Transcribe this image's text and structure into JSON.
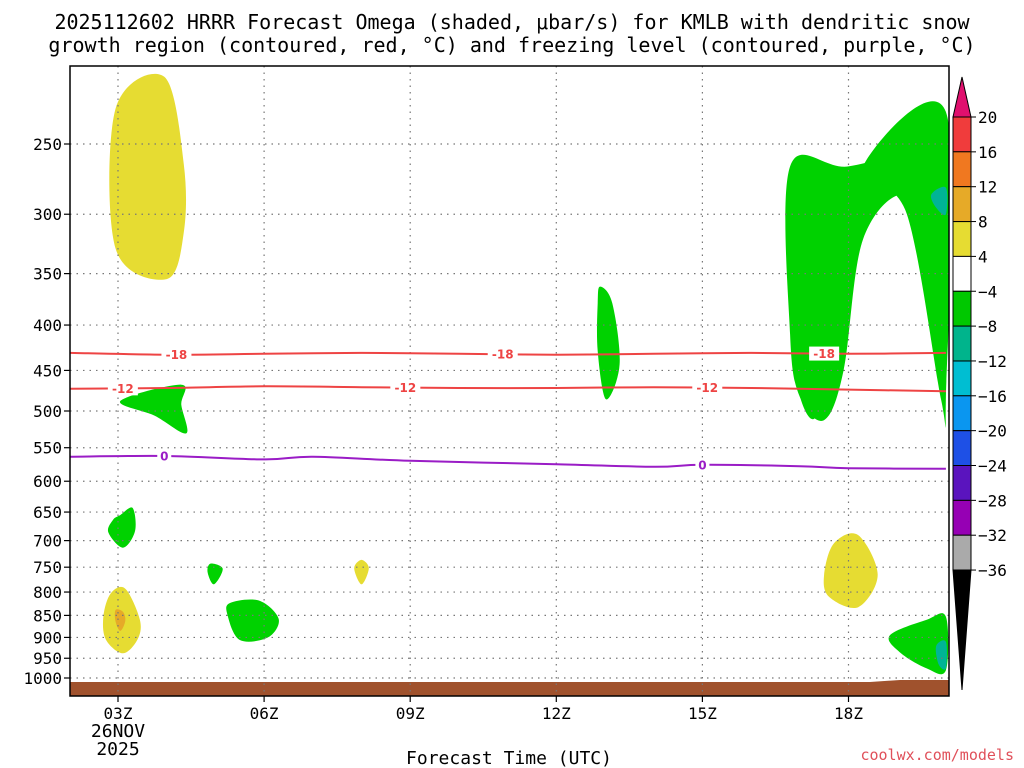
{
  "chart_data": {
    "type": "contour",
    "title_line1": "2025112602 HRRR Forecast Omega (shaded, μbar/s) for KMLB with dendritic snow",
    "title_line2": "growth region (contoured, red, °C) and freezing level (contoured, purple, °C)",
    "xlabel": "Forecast Time (UTC)",
    "x_ticks": [
      {
        "hour": 3,
        "label": "03Z"
      },
      {
        "hour": 6,
        "label": "06Z"
      },
      {
        "hour": 9,
        "label": "09Z"
      },
      {
        "hour": 12,
        "label": "12Z"
      },
      {
        "hour": 15,
        "label": "15Z"
      },
      {
        "hour": 18,
        "label": "18Z"
      }
    ],
    "date_label": "26NOV",
    "year_label": "2025",
    "x_range_hours": [
      2,
      20
    ],
    "y_range_hpa": [
      200,
      1025
    ],
    "y_scale": "log",
    "y_ticks": [
      250,
      300,
      350,
      400,
      450,
      500,
      550,
      600,
      650,
      700,
      750,
      800,
      850,
      900,
      950,
      1000
    ],
    "grid": true,
    "colorbar": {
      "labels": [
        "20",
        "16",
        "12",
        "8",
        "4",
        "−4",
        "−8",
        "−12",
        "−16",
        "−20",
        "−24",
        "−28",
        "−32",
        "−36"
      ],
      "colors": [
        "#e0106e",
        "#f03c3c",
        "#f07820",
        "#e6aa28",
        "#e6dc32",
        "#ffffff",
        "#00c800",
        "#00b48c",
        "#00bed2",
        "#0a96f0",
        "#1e50e6",
        "#5a14be",
        "#9600b4",
        "#aaaaaa",
        "#000000"
      ]
    },
    "omega_colors": {
      "green": "#00d200",
      "teal": "#00b496",
      "yellow": "#e6dc32",
      "orange": "#e6aa28"
    },
    "terrain_color": "#a0522d",
    "dgz_contours": [
      {
        "label": "-18",
        "color": "#ee4444",
        "points": [
          [
            2,
            430
          ],
          [
            4,
            432
          ],
          [
            6,
            431
          ],
          [
            8,
            430
          ],
          [
            10,
            431
          ],
          [
            12,
            432
          ],
          [
            14,
            431
          ],
          [
            16,
            430
          ],
          [
            18,
            431
          ],
          [
            20,
            430
          ]
        ],
        "label_hours": [
          4.2,
          10.9,
          17.5
        ]
      },
      {
        "label": "-12",
        "color": "#ee4444",
        "points": [
          [
            2,
            472
          ],
          [
            4,
            471
          ],
          [
            6,
            469
          ],
          [
            8,
            470
          ],
          [
            10,
            471
          ],
          [
            12,
            471
          ],
          [
            14,
            470
          ],
          [
            16,
            471
          ],
          [
            18,
            473
          ],
          [
            20,
            475
          ]
        ],
        "label_hours": [
          3.1,
          8.9,
          15.1
        ]
      }
    ],
    "freezing_contour": {
      "label": "0",
      "color": "#9a1cc6",
      "points": [
        [
          2,
          563
        ],
        [
          4,
          562
        ],
        [
          6,
          567
        ],
        [
          7,
          563
        ],
        [
          9,
          569
        ],
        [
          12,
          574
        ],
        [
          14,
          578
        ],
        [
          15,
          575
        ],
        [
          17,
          577
        ],
        [
          18,
          580
        ],
        [
          20,
          581
        ]
      ],
      "label_hours": [
        3.95,
        15
      ]
    },
    "omega_regions": [
      {
        "color": "yellow",
        "points": [
          [
            2.95,
            228
          ],
          [
            3.95,
            210
          ],
          [
            4.35,
            263
          ],
          [
            4.35,
            315
          ],
          [
            4.0,
            355
          ],
          [
            2.95,
            328
          ]
        ]
      },
      {
        "color": "green",
        "points": [
          [
            3.05,
            655
          ],
          [
            3.3,
            643
          ],
          [
            3.35,
            683
          ],
          [
            3.1,
            713
          ],
          [
            2.8,
            685
          ],
          [
            2.9,
            663
          ]
        ]
      },
      {
        "color": "yellow",
        "points": [
          [
            2.85,
            803
          ],
          [
            3.15,
            793
          ],
          [
            3.45,
            860
          ],
          [
            3.4,
            905
          ],
          [
            3.1,
            938
          ],
          [
            2.75,
            905
          ],
          [
            2.7,
            852
          ]
        ]
      },
      {
        "color": "orange",
        "points": [
          [
            2.95,
            838
          ],
          [
            3.1,
            842
          ],
          [
            3.15,
            862
          ],
          [
            3.05,
            885
          ],
          [
            2.95,
            864
          ]
        ]
      },
      {
        "color": "green",
        "points": [
          [
            3.05,
            487
          ],
          [
            4.3,
            467
          ],
          [
            4.3,
            492
          ],
          [
            4.4,
            530
          ],
          [
            3.75,
            506
          ]
        ]
      },
      {
        "color": "green",
        "points": [
          [
            4.9,
            743
          ],
          [
            5.15,
            753
          ],
          [
            4.97,
            784
          ],
          [
            4.84,
            760
          ]
        ]
      },
      {
        "color": "green",
        "points": [
          [
            5.3,
            823
          ],
          [
            5.9,
            818
          ],
          [
            6.3,
            858
          ],
          [
            6.08,
            900
          ],
          [
            5.5,
            906
          ],
          [
            5.25,
            850
          ]
        ]
      },
      {
        "color": "yellow",
        "points": [
          [
            8.0,
            736
          ],
          [
            8.15,
            752
          ],
          [
            8.0,
            784
          ],
          [
            7.85,
            752
          ]
        ]
      },
      {
        "color": "green",
        "points": [
          [
            12.9,
            362
          ],
          [
            13.15,
            378
          ],
          [
            13.3,
            443
          ],
          [
            13.02,
            485
          ],
          [
            12.85,
            428
          ],
          [
            12.85,
            378
          ]
        ]
      },
      {
        "color": "green",
        "points": [
          [
            16.8,
            265
          ],
          [
            18.0,
            265
          ],
          [
            19.8,
            250
          ],
          [
            20.0,
            250
          ],
          [
            20.0,
            335
          ],
          [
            19.2,
            285
          ],
          [
            18.3,
            320
          ],
          [
            17.9,
            450
          ],
          [
            17.5,
            512
          ],
          [
            17.0,
            482
          ],
          [
            16.8,
            410
          ]
        ]
      },
      {
        "color": "green",
        "points": [
          [
            18.3,
            265
          ],
          [
            20.0,
            230
          ],
          [
            20.0,
            482
          ],
          [
            19.9,
            485
          ],
          [
            19.2,
            300
          ]
        ]
      },
      {
        "color": "green",
        "points": [
          [
            17.0,
            430
          ],
          [
            17.5,
            420
          ],
          [
            17.6,
            450
          ],
          [
            17.3,
            510
          ],
          [
            17.0,
            480
          ]
        ]
      },
      {
        "color": "teal",
        "points": [
          [
            19.7,
            285
          ],
          [
            20.0,
            280
          ],
          [
            20.0,
            300
          ],
          [
            19.8,
            295
          ]
        ]
      },
      {
        "color": "yellow",
        "points": [
          [
            17.7,
            705
          ],
          [
            18.2,
            690
          ],
          [
            18.6,
            765
          ],
          [
            18.2,
            832
          ],
          [
            17.6,
            810
          ],
          [
            17.5,
            765
          ]
        ]
      },
      {
        "color": "green",
        "points": [
          [
            18.85,
            895
          ],
          [
            19.6,
            860
          ],
          [
            20.0,
            853
          ],
          [
            20.0,
            980
          ],
          [
            19.6,
            975
          ],
          [
            19.05,
            935
          ]
        ]
      },
      {
        "color": "teal",
        "points": [
          [
            19.8,
            920
          ],
          [
            20.0,
            910
          ],
          [
            20.0,
            975
          ],
          [
            19.85,
            965
          ]
        ]
      }
    ]
  },
  "credit": "coolwx.com/models"
}
